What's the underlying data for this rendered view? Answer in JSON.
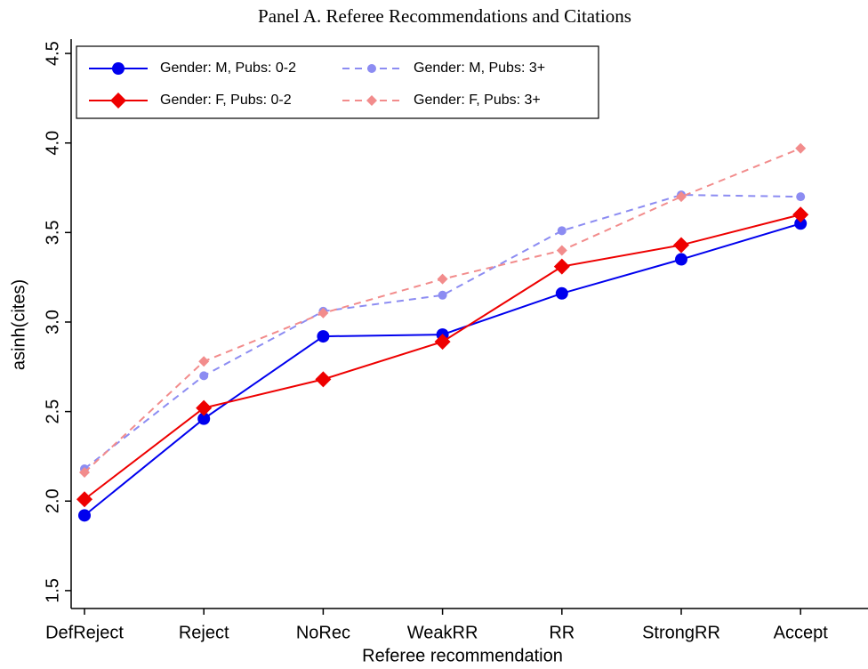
{
  "chart_data": {
    "type": "line",
    "title": "Panel A. Referee Recommendations and Citations",
    "x_label": "Referee recommendation",
    "y_label": "asinh(cites)",
    "categories": [
      "DefReject",
      "Reject",
      "NoRec",
      "WeakRR",
      "RR",
      "StrongRR",
      "Accept"
    ],
    "ylim": [
      1.4,
      4.58
    ],
    "yticks": [
      {
        "value": 1.5,
        "label": "1.5"
      },
      {
        "value": 2.0,
        "label": "2.0"
      },
      {
        "value": 2.5,
        "label": "2.5"
      },
      {
        "value": 3.0,
        "label": "3.0"
      },
      {
        "value": 3.5,
        "label": "3.5"
      },
      {
        "value": 4.0,
        "label": "4.0"
      },
      {
        "value": 4.5,
        "label": "4.5"
      }
    ],
    "grid": false,
    "legend": "top-left",
    "series": [
      {
        "name": "Gender: M, Pubs: 0-2",
        "color": "#0000ee",
        "marker": "circle",
        "dashed": false,
        "values": [
          1.92,
          2.46,
          2.92,
          2.93,
          3.16,
          3.35,
          3.55
        ]
      },
      {
        "name": "Gender: M, Pubs: 3+",
        "color": "#8c8cf2",
        "marker": "circle",
        "dashed": true,
        "values": [
          2.18,
          2.7,
          3.06,
          3.15,
          3.51,
          3.71,
          3.7
        ]
      },
      {
        "name": "Gender: F, Pubs: 0-2",
        "color": "#ee0000",
        "marker": "diamond",
        "dashed": false,
        "values": [
          2.01,
          2.52,
          2.68,
          2.89,
          3.31,
          3.43,
          3.6
        ]
      },
      {
        "name": "Gender: F, Pubs: 3+",
        "color": "#f28c8c",
        "marker": "diamond",
        "dashed": true,
        "values": [
          2.16,
          2.78,
          3.05,
          3.24,
          3.4,
          3.7,
          3.97
        ]
      }
    ]
  }
}
